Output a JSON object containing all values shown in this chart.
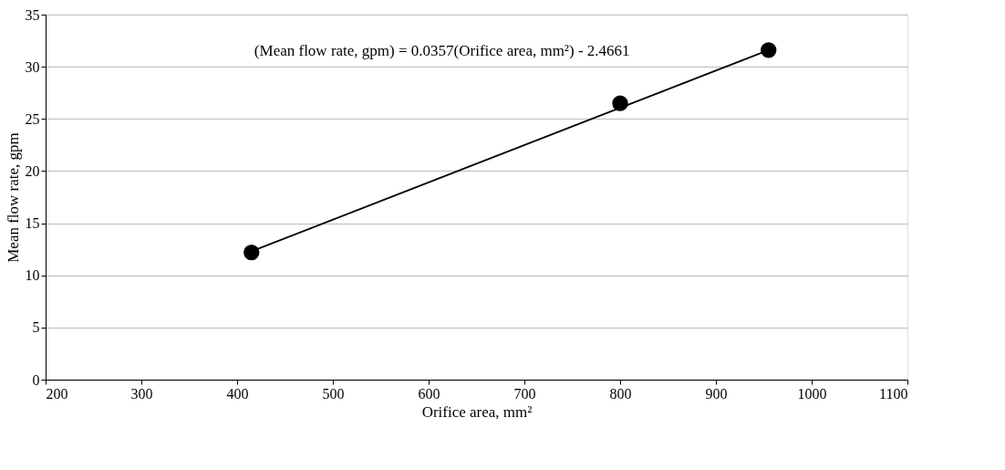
{
  "chart_data": {
    "type": "scatter",
    "xlabel": "Orifice area, mm²",
    "ylabel": "Mean flow rate, gpm",
    "series": [
      {
        "color": "#000000",
        "x": [
          415,
          800,
          955
        ],
        "values": [
          12.2,
          26.5,
          31.6
        ],
        "marker": "circle"
      },
      {
        "type": "line",
        "color": "#000000",
        "x": [
          415,
          955
        ],
        "values": [
          12.3,
          31.6
        ],
        "line_style": "solid",
        "marker": "none"
      }
    ],
    "annotations": [
      "(Mean flow rate, gpm) = 0.0357(Orifice area, mm²) - 2.4661"
    ],
    "xlim": [
      200,
      1100
    ],
    "xticks": [
      200,
      300,
      400,
      500,
      600,
      700,
      800,
      900,
      1000,
      1100
    ],
    "ylim": [
      0,
      35
    ],
    "yticks": [
      0,
      5,
      10,
      15,
      20,
      25,
      30,
      35
    ],
    "grid": "y"
  }
}
